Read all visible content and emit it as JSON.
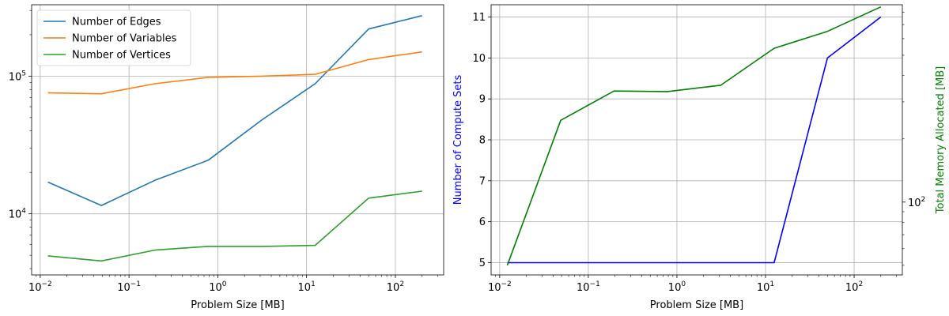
{
  "chart_data": [
    {
      "type": "line",
      "xlabel": "Problem Size [MB]",
      "ylabel": "",
      "xscale": "log",
      "yscale": "log",
      "xlim": [
        0.008,
        350
      ],
      "ylim": [
        3600,
        330000
      ],
      "x": [
        0.0122,
        0.0488,
        0.195,
        0.781,
        3.125,
        12.5,
        50,
        200
      ],
      "xticks": [
        {
          "value": 0.01,
          "base": "10",
          "exp": "−2"
        },
        {
          "value": 0.1,
          "base": "10",
          "exp": "−1"
        },
        {
          "value": 1,
          "base": "10",
          "exp": "0"
        },
        {
          "value": 10,
          "base": "10",
          "exp": "1"
        },
        {
          "value": 100,
          "base": "10",
          "exp": "2"
        }
      ],
      "yticks": [
        {
          "value": 10000,
          "base": "10",
          "exp": "4"
        },
        {
          "value": 100000,
          "base": "10",
          "exp": "5"
        }
      ],
      "grid": true,
      "legend": "upper-left",
      "series": [
        {
          "name": "Number of Edges",
          "color": "#1f77b4",
          "values": [
            17000,
            11500,
            17500,
            24500,
            48000,
            88000,
            220000,
            275000
          ]
        },
        {
          "name": "Number of Variables",
          "color": "#ff7f0e",
          "values": [
            75500,
            74500,
            88000,
            98000,
            100000,
            103000,
            132000,
            150000
          ]
        },
        {
          "name": "Number of Vertices",
          "color": "#2ca02c",
          "values": [
            4950,
            4550,
            5450,
            5800,
            5800,
            5900,
            13000,
            14600
          ]
        }
      ]
    },
    {
      "type": "line",
      "xlabel": "Problem Size [MB]",
      "ylabel": "Number of Compute Sets",
      "y2label": "Total Memory Allocated [MB]",
      "xscale": "log",
      "xlim": [
        0.008,
        350
      ],
      "ylim": [
        4.7,
        11.3
      ],
      "y2scale": "log",
      "y2lim": [
        45,
        870
      ],
      "x": [
        0.0122,
        0.0488,
        0.195,
        0.781,
        3.125,
        12.5,
        50,
        200
      ],
      "xticks": [
        {
          "value": 0.01,
          "base": "10",
          "exp": "−2"
        },
        {
          "value": 0.1,
          "base": "10",
          "exp": "−1"
        },
        {
          "value": 1,
          "base": "10",
          "exp": "0"
        },
        {
          "value": 10,
          "base": "10",
          "exp": "1"
        },
        {
          "value": 100,
          "base": "10",
          "exp": "2"
        }
      ],
      "yticks": [
        "5",
        "6",
        "7",
        "8",
        "9",
        "10",
        "11"
      ],
      "y2ticks": [
        {
          "value": 100,
          "base": "10",
          "exp": "2"
        }
      ],
      "grid": true,
      "series": [
        {
          "name": "Number of Compute Sets",
          "axis": "left",
          "color": "#0000ff",
          "values": [
            5,
            5,
            5,
            5,
            5,
            5,
            10,
            11
          ]
        },
        {
          "name": "Total Memory Allocated [MB]",
          "axis": "right",
          "color": "#008000",
          "values": [
            50,
            245,
            338,
            336,
            360,
            540,
            650,
            850
          ]
        }
      ]
    }
  ]
}
